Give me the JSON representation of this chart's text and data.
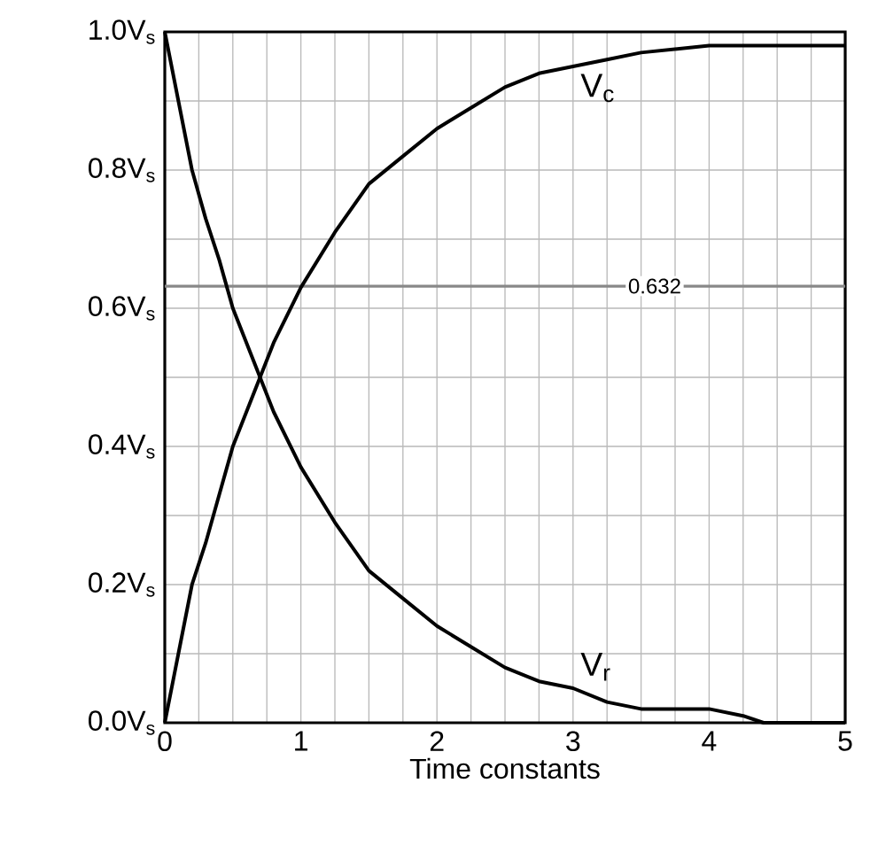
{
  "chart_data": {
    "type": "line",
    "xlabel": "Time constants",
    "xlim": [
      0,
      5
    ],
    "ylim": [
      0,
      1
    ],
    "xticks": [
      0,
      {
        "value": 0.25,
        "label": null
      },
      {
        "value": 0.5,
        "label": null
      },
      {
        "value": 0.75,
        "label": null
      },
      1,
      {
        "value": 1.25,
        "label": null
      },
      {
        "value": 1.5,
        "label": null
      },
      {
        "value": 1.75,
        "label": null
      },
      2,
      {
        "value": 2.25,
        "label": null
      },
      {
        "value": 2.5,
        "label": null
      },
      {
        "value": 2.75,
        "label": null
      },
      3,
      {
        "value": 3.25,
        "label": null
      },
      {
        "value": 3.5,
        "label": null
      },
      {
        "value": 3.75,
        "label": null
      },
      4,
      {
        "value": 4.25,
        "label": null
      },
      {
        "value": 4.5,
        "label": null
      },
      {
        "value": 4.75,
        "label": null
      },
      5
    ],
    "yticks": [
      {
        "value": 0,
        "label": "0.0V$_{s}$"
      },
      {
        "value": 0.1,
        "label": null
      },
      {
        "value": 0.2,
        "label": "0.2V$_{s}$"
      },
      {
        "value": 0.3,
        "label": null
      },
      {
        "value": 0.4,
        "label": "0.4V$_{s}$"
      },
      {
        "value": 0.5,
        "label": null
      },
      {
        "value": 0.6,
        "label": "0.6V$_{s}$"
      },
      {
        "value": 0.7,
        "label": null
      },
      {
        "value": 0.8,
        "label": "0.8V$_{s}$"
      },
      {
        "value": 0.9,
        "label": null
      },
      {
        "value": 1,
        "label": "1.0V$_{s}$"
      }
    ],
    "grid": true,
    "marker": "none",
    "line_style": "solid",
    "x": [
      0,
      0.1,
      0.2,
      0.3,
      0.4,
      0.5,
      0.6,
      0.7,
      0.8,
      0.9,
      1,
      1.25,
      1.5,
      1.75,
      2,
      2.25,
      2.5,
      2.75,
      3,
      3.25,
      3.5,
      4,
      4.25,
      4.4,
      5
    ],
    "series": [
      {
        "name": "V$_{c}$",
        "color": "#000000",
        "values": [
          0,
          0.1,
          0.2,
          0.26,
          0.33,
          0.4,
          0.45,
          0.5,
          0.55,
          0.59,
          0.63,
          0.71,
          0.78,
          0.82,
          0.86,
          0.89,
          0.92,
          0.94,
          0.95,
          0.96,
          0.97,
          0.98,
          0.98,
          0.98,
          0.98
        ]
      },
      {
        "name": "V$_{r}$",
        "color": "#000000",
        "values": [
          1,
          0.9,
          0.8,
          0.73,
          0.67,
          0.6,
          0.55,
          0.5,
          0.45,
          0.41,
          0.37,
          0.29,
          0.22,
          0.18,
          0.14,
          0.11,
          0.08,
          0.06,
          0.05,
          0.03,
          0.02,
          0.02,
          0.01,
          0,
          0
        ]
      }
    ],
    "ref_lines": [
      {
        "axis": "y",
        "value": 0.632,
        "label": "0.632",
        "color": "#888888"
      }
    ]
  }
}
